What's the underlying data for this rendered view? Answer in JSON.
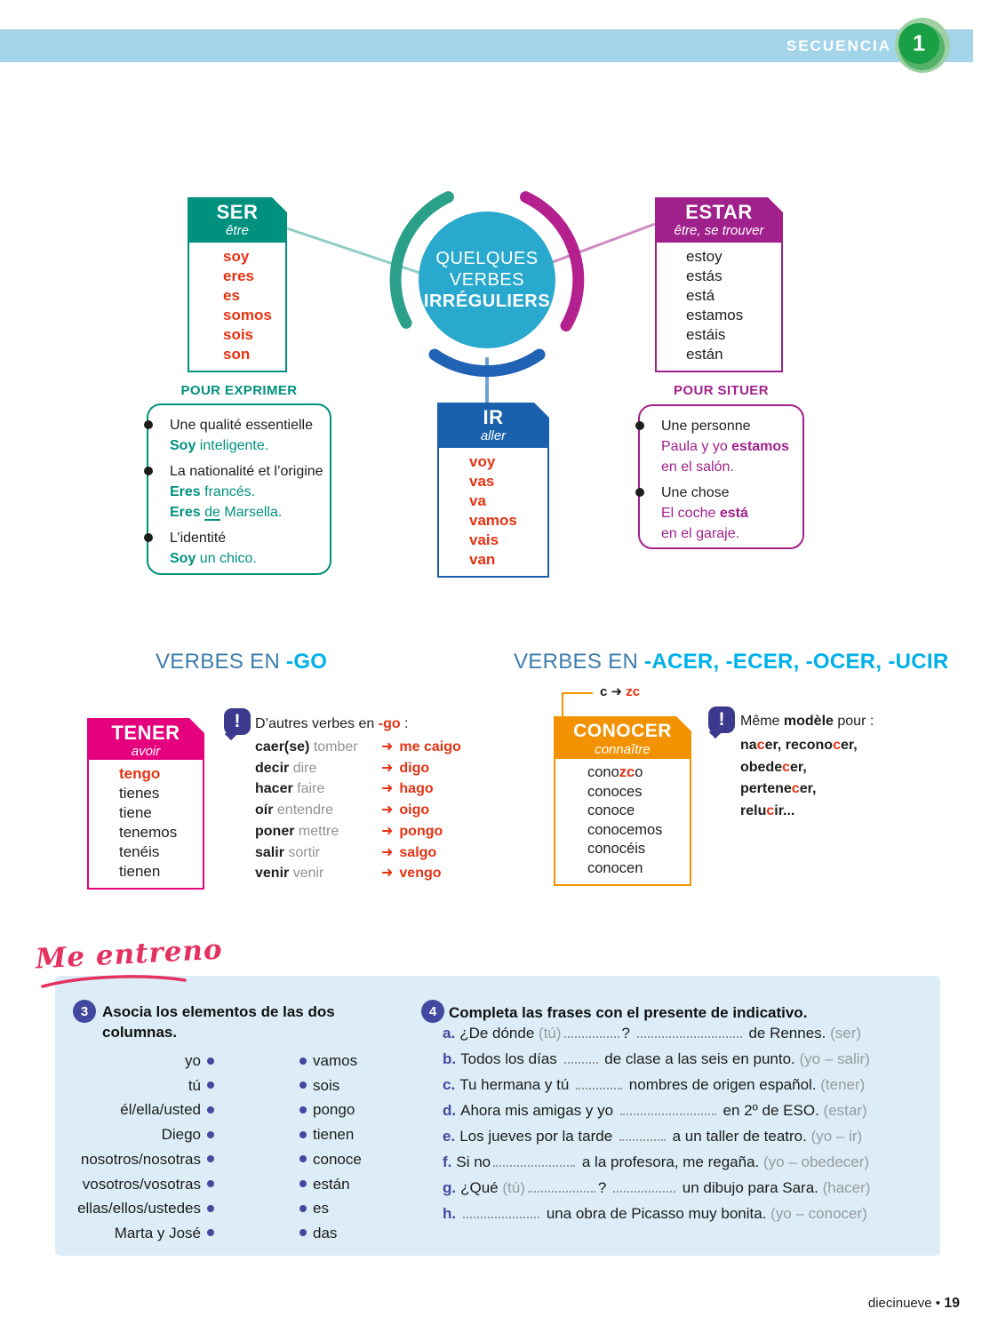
{
  "colors": {
    "topbar_blue": "#a4d4e9",
    "badge_green": "#199f45",
    "circle_cyan": "#2aa9ce",
    "teal": "#00917e",
    "magenta": "#a1218c",
    "blue": "#1961ac",
    "red": "#e53212",
    "pink": "#e5007d",
    "orange": "#f39200",
    "indigo_note": "#3b3a8f",
    "indigo_ex": "#4349a0",
    "heading_steel": "#3d7dad",
    "heading_cyan": "#00b0e8",
    "panel_blue": "#dcedf7",
    "entreno_pink": "#e4315f",
    "gray_hint": "#979b9e"
  },
  "header": {
    "secuencia": "SECUENCIA",
    "number": "1"
  },
  "diagram": {
    "center": [
      "QUELQUES",
      "VERBES",
      "IRRÉGULIERS"
    ],
    "ser": {
      "title": "SER",
      "subtitle": "être",
      "forms": [
        "soy",
        "eres",
        "es",
        "somos",
        "sois",
        "son"
      ]
    },
    "estar": {
      "title": "ESTAR",
      "subtitle": "être, se trouver",
      "forms": [
        "estoy",
        "estás",
        "está",
        "estamos",
        "estáis",
        "están"
      ]
    },
    "ir": {
      "title": "IR",
      "subtitle": "aller",
      "forms": [
        "voy",
        "vas",
        "va",
        "vamos",
        "vais",
        "van"
      ]
    },
    "pour_exprimer": {
      "heading": "POUR EXPRIMER",
      "items": [
        {
          "label": "Une qualité essentielle",
          "lines": [
            [
              {
                "t": "Soy",
                "c": "tealb"
              },
              {
                "t": " inteligente.",
                "c": "teal"
              }
            ]
          ]
        },
        {
          "label": "La nationalité et l’origine",
          "lines": [
            [
              {
                "t": "Eres",
                "c": "tealb"
              },
              {
                "t": " francés.",
                "c": "teal"
              }
            ],
            [
              {
                "t": "Eres",
                "c": "tealb"
              },
              {
                "t": " ",
                "c": "teal"
              },
              {
                "t": "de",
                "c": "teal u"
              },
              {
                "t": " Marsella.",
                "c": "teal"
              }
            ]
          ]
        },
        {
          "label": "L’identité",
          "lines": [
            [
              {
                "t": "Soy",
                "c": "tealb"
              },
              {
                "t": " un chico.",
                "c": "teal"
              }
            ]
          ]
        }
      ]
    },
    "pour_situer": {
      "heading": "POUR SITUER",
      "items": [
        {
          "label": "Une personne",
          "lines": [
            [
              {
                "t": "Paula y yo ",
                "c": "mag"
              },
              {
                "t": "estamos",
                "c": "magb"
              }
            ],
            [
              {
                "t": "en el salón.",
                "c": "mag"
              }
            ]
          ]
        },
        {
          "label": "Une chose",
          "lines": [
            [
              {
                "t": "El coche ",
                "c": "mag"
              },
              {
                "t": "está",
                "c": "magb"
              }
            ],
            [
              {
                "t": "en el garaje.",
                "c": "mag"
              }
            ]
          ]
        }
      ]
    }
  },
  "sections": {
    "go": {
      "prefix": "VERBES EN ",
      "suffix": "-GO"
    },
    "acer": {
      "prefix": "VERBES EN ",
      "suffix": "-ACER, -ECER, -OCER, -UCIR"
    }
  },
  "tener": {
    "title": "TENER",
    "subtitle": "avoir",
    "first": "tengo",
    "forms": [
      "tienes",
      "tiene",
      "tenemos",
      "tenéis",
      "tienen"
    ]
  },
  "go_note": {
    "icon_glyph": "!",
    "intro": [
      {
        "t": "D’autres verbes en "
      },
      {
        "t": "-go",
        "c": "redb"
      },
      {
        "t": " :"
      }
    ],
    "arrow": "➜",
    "rows": [
      {
        "verb": "caer(se)",
        "fr": "tomber",
        "res": "me caigo"
      },
      {
        "verb": "decir",
        "fr": "dire",
        "res": "digo"
      },
      {
        "verb": "hacer",
        "fr": "faire",
        "res": "hago"
      },
      {
        "verb": "oír",
        "fr": "entendre",
        "res": "oigo"
      },
      {
        "verb": "poner",
        "fr": "mettre",
        "res": "pongo"
      },
      {
        "verb": "salir",
        "fr": "sortir",
        "res": "salgo"
      },
      {
        "verb": "venir",
        "fr": "venir",
        "res": "vengo"
      }
    ]
  },
  "conocer": {
    "annotation": [
      {
        "t": "c ",
        "c": "blkb"
      },
      {
        "t": "➜ ",
        "c": "blkb"
      },
      {
        "t": "zc",
        "c": "redb"
      }
    ],
    "title": "CONOCER",
    "subtitle": "connaître",
    "first": [
      {
        "t": "cono"
      },
      {
        "t": "zc",
        "c": "redb"
      },
      {
        "t": "o"
      }
    ],
    "forms": [
      "conoces",
      "conoce",
      "conocemos",
      "conocéis",
      "conocen"
    ]
  },
  "meme_note": {
    "icon_glyph": "!",
    "intro": [
      {
        "t": "Même "
      },
      {
        "t": "modèle",
        "c": "b"
      },
      {
        "t": " pour :"
      }
    ],
    "lines": [
      [
        {
          "t": "na",
          "c": "b"
        },
        {
          "t": "c",
          "c": "redb"
        },
        {
          "t": "er, recono",
          "c": "b"
        },
        {
          "t": "c",
          "c": "redb"
        },
        {
          "t": "er,",
          "c": "b"
        }
      ],
      [
        {
          "t": "obede",
          "c": "b"
        },
        {
          "t": "c",
          "c": "redb"
        },
        {
          "t": "er,",
          "c": "b"
        }
      ],
      [
        {
          "t": "pertene",
          "c": "b"
        },
        {
          "t": "c",
          "c": "redb"
        },
        {
          "t": "er,",
          "c": "b"
        }
      ],
      [
        {
          "t": "relu",
          "c": "b"
        },
        {
          "t": "c",
          "c": "redb"
        },
        {
          "t": "ir...",
          "c": "b"
        }
      ]
    ]
  },
  "me_entreno": "Me entreno",
  "ex3": {
    "number": "3",
    "title": "Asocia los elementos de las dos columnas.",
    "left": [
      "yo",
      "tú",
      "él/ella/usted",
      "Diego",
      "nosotros/nosotras",
      "vosotros/vosotras",
      "ellas/ellos/ustedes",
      "Marta y José"
    ],
    "right": [
      "vamos",
      "sois",
      "pongo",
      "tienen",
      "conoce",
      "están",
      "es",
      "das"
    ]
  },
  "ex4": {
    "number": "4",
    "title": "Completa las frases con el presente de indicativo.",
    "rows": [
      {
        "letter": "a.",
        "runs": [
          {
            "t": "¿De dónde "
          },
          {
            "t": "(tú)",
            "c": "gray"
          },
          {
            "d": 62
          },
          {
            "t": "? "
          },
          {
            "d": 118
          },
          {
            "t": " de Rennes. "
          },
          {
            "t": "(ser)",
            "c": "gray"
          }
        ]
      },
      {
        "letter": "b.",
        "runs": [
          {
            "t": "Todos los días "
          },
          {
            "d": 38
          },
          {
            "t": " de clase a las seis en punto. "
          },
          {
            "t": "(yo – salir)",
            "c": "gray"
          }
        ]
      },
      {
        "letter": "c.",
        "runs": [
          {
            "t": "Tu hermana y tú "
          },
          {
            "d": 52
          },
          {
            "t": " nombres de origen español. "
          },
          {
            "t": "(tener)",
            "c": "gray"
          }
        ]
      },
      {
        "letter": "d.",
        "runs": [
          {
            "t": "Ahora mis amigas y yo "
          },
          {
            "d": 108
          },
          {
            "t": " en 2º de ESO. "
          },
          {
            "t": "(estar)",
            "c": "gray"
          }
        ]
      },
      {
        "letter": "e.",
        "runs": [
          {
            "t": "Los jueves por la tarde "
          },
          {
            "d": 52
          },
          {
            "t": " a un taller de teatro. "
          },
          {
            "t": "(yo – ir)",
            "c": "gray"
          }
        ]
      },
      {
        "letter": "f.",
        "runs": [
          {
            "t": "Si no"
          },
          {
            "d": 92
          },
          {
            "t": " a la profesora, me regaña. "
          },
          {
            "t": "(yo – obedecer)",
            "c": "gray"
          }
        ]
      },
      {
        "letter": "g.",
        "runs": [
          {
            "t": "¿Qué "
          },
          {
            "t": "(tú)",
            "c": "gray"
          },
          {
            "d": 76
          },
          {
            "t": "? "
          },
          {
            "d": 70
          },
          {
            "t": " un dibujo para Sara. "
          },
          {
            "t": "(hacer)",
            "c": "gray"
          }
        ]
      },
      {
        "letter": "h.",
        "runs": [
          {
            "d": 86
          },
          {
            "t": " una obra de Picasso muy bonita. "
          },
          {
            "t": "(yo – conocer)",
            "c": "gray"
          }
        ]
      }
    ]
  },
  "footer": {
    "page_word": "diecinueve",
    "bullet": "•",
    "page_num": "19"
  }
}
